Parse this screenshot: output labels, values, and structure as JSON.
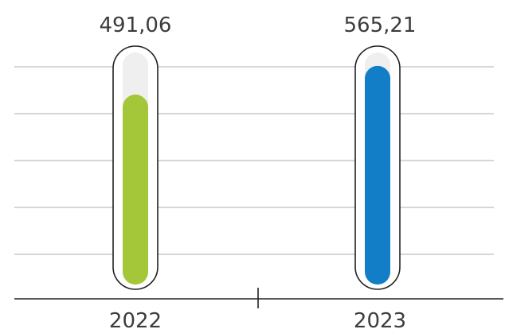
{
  "chart_data": {
    "type": "bar",
    "title": "",
    "xlabel": "",
    "ylabel": "",
    "categories": [
      "2022",
      "2023"
    ],
    "values": [
      491.06,
      565.21
    ],
    "value_labels": [
      "491,06",
      "565,21"
    ],
    "ylim": [
      0,
      600
    ],
    "grid": true,
    "colors": {
      "bar_2022": "#a4c639",
      "bar_2023": "#127ec8",
      "track": "#efefef",
      "outline": "#222222",
      "grid": "#bdbdbd",
      "axis": "#222222",
      "text": "#3c3c3c"
    }
  }
}
